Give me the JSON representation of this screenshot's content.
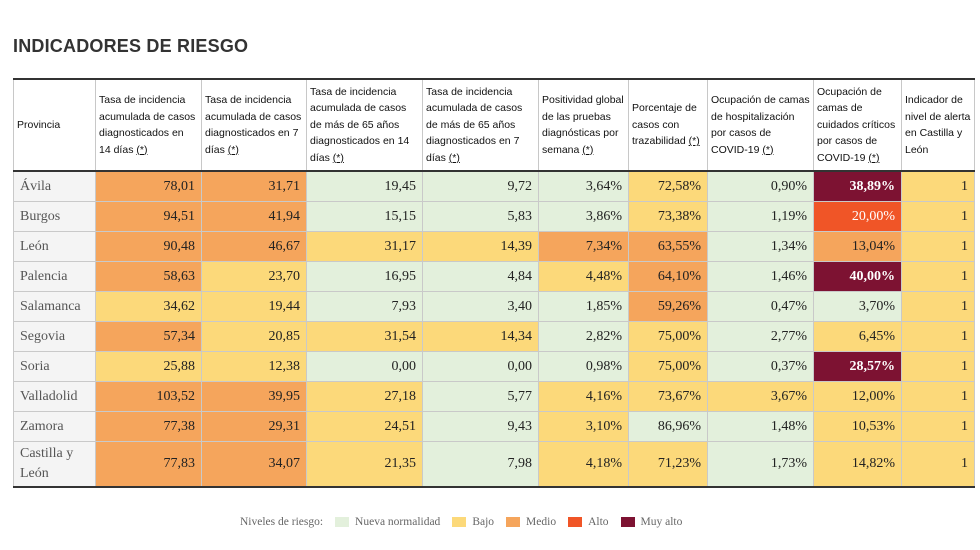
{
  "title": "INDICADORES DE RIESGO",
  "headers": [
    "Provincia",
    "Tasa de incidencia acumulada de casos diagnosticados en 14 días",
    "Tasa de incidencia acumulada de casos diagnosticados en 7 días",
    "Tasa de incidencia acumulada de casos de más de 65 años diagnosticados en 14 días",
    "Tasa de incidencia acumulada de casos de más de 65 años diagnosticados en 7 días",
    "Positividad global de las pruebas diagnósticas por semana",
    "Porcentaje de casos con trazabilidad",
    "Ocupación de camas de hospitalización por casos de COVID-19",
    "Ocupación de camas de cuidados críticos por casos de COVID-19",
    "Indicador de nivel de alerta en Castilla y León"
  ],
  "asterisk": "(*)",
  "rows": [
    {
      "province": "Ávila",
      "values": [
        "78,01",
        "31,71",
        "19,45",
        "9,72",
        "3,64%",
        "72,58%",
        "0,90%",
        "38,89%",
        "1"
      ],
      "levels": [
        "medio",
        "medio",
        "nn",
        "nn",
        "nn",
        "bajo",
        "nn",
        "muyalto",
        "bajo"
      ]
    },
    {
      "province": "Burgos",
      "values": [
        "94,51",
        "41,94",
        "15,15",
        "5,83",
        "3,86%",
        "73,38%",
        "1,19%",
        "20,00%",
        "1"
      ],
      "levels": [
        "medio",
        "medio",
        "nn",
        "nn",
        "nn",
        "bajo",
        "nn",
        "alto",
        "bajo"
      ]
    },
    {
      "province": "León",
      "values": [
        "90,48",
        "46,67",
        "31,17",
        "14,39",
        "7,34%",
        "63,55%",
        "1,34%",
        "13,04%",
        "1"
      ],
      "levels": [
        "medio",
        "medio",
        "bajo",
        "bajo",
        "medio",
        "medio",
        "nn",
        "medio",
        "bajo"
      ]
    },
    {
      "province": "Palencia",
      "values": [
        "58,63",
        "23,70",
        "16,95",
        "4,84",
        "4,48%",
        "64,10%",
        "1,46%",
        "40,00%",
        "1"
      ],
      "levels": [
        "medio",
        "bajo",
        "nn",
        "nn",
        "bajo",
        "medio",
        "nn",
        "muyalto",
        "bajo"
      ]
    },
    {
      "province": "Salamanca",
      "values": [
        "34,62",
        "19,44",
        "7,93",
        "3,40",
        "1,85%",
        "59,26%",
        "0,47%",
        "3,70%",
        "1"
      ],
      "levels": [
        "bajo",
        "bajo",
        "nn",
        "nn",
        "nn",
        "medio",
        "nn",
        "nn",
        "bajo"
      ]
    },
    {
      "province": "Segovia",
      "values": [
        "57,34",
        "20,85",
        "31,54",
        "14,34",
        "2,82%",
        "75,00%",
        "2,77%",
        "6,45%",
        "1"
      ],
      "levels": [
        "medio",
        "bajo",
        "bajo",
        "bajo",
        "nn",
        "bajo",
        "nn",
        "bajo",
        "bajo"
      ]
    },
    {
      "province": "Soria",
      "values": [
        "25,88",
        "12,38",
        "0,00",
        "0,00",
        "0,98%",
        "75,00%",
        "0,37%",
        "28,57%",
        "1"
      ],
      "levels": [
        "bajo",
        "bajo",
        "nn",
        "nn",
        "nn",
        "bajo",
        "nn",
        "muyalto",
        "bajo"
      ]
    },
    {
      "province": "Valladolid",
      "values": [
        "103,52",
        "39,95",
        "27,18",
        "5,77",
        "4,16%",
        "73,67%",
        "3,67%",
        "12,00%",
        "1"
      ],
      "levels": [
        "medio",
        "medio",
        "bajo",
        "nn",
        "bajo",
        "bajo",
        "bajo",
        "bajo",
        "bajo"
      ]
    },
    {
      "province": "Zamora",
      "values": [
        "77,38",
        "29,31",
        "24,51",
        "9,43",
        "3,10%",
        "86,96%",
        "1,48%",
        "10,53%",
        "1"
      ],
      "levels": [
        "medio",
        "medio",
        "bajo",
        "nn",
        "bajo",
        "nn",
        "nn",
        "bajo",
        "bajo"
      ]
    },
    {
      "province": "Castilla y León",
      "values": [
        "77,83",
        "34,07",
        "21,35",
        "7,98",
        "4,18%",
        "71,23%",
        "1,73%",
        "14,82%",
        "1"
      ],
      "levels": [
        "medio",
        "medio",
        "bajo",
        "nn",
        "bajo",
        "bajo",
        "nn",
        "bajo",
        "bajo"
      ],
      "total": true
    }
  ],
  "legend": {
    "label": "Niveles de riesgo:",
    "items": [
      {
        "key": "nn",
        "label": "Nueva normalidad",
        "color": "#e3f0dc"
      },
      {
        "key": "bajo",
        "label": "Bajo",
        "color": "#fcd97a"
      },
      {
        "key": "medio",
        "label": "Medio",
        "color": "#f5a55c"
      },
      {
        "key": "alto",
        "label": "Alto",
        "color": "#f05527"
      },
      {
        "key": "muyalto",
        "label": "Muy alto",
        "color": "#7d1232"
      }
    ]
  }
}
